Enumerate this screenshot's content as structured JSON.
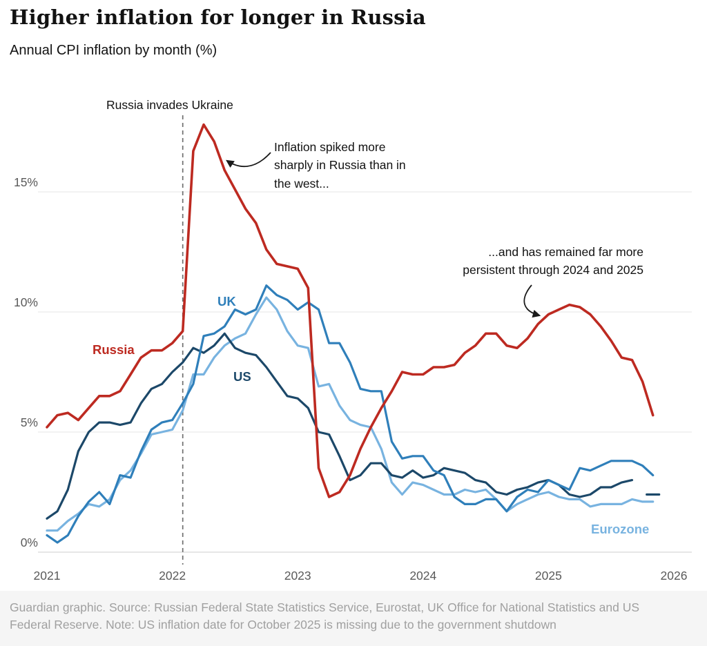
{
  "header": {
    "title": "Higher inflation for longer in Russia",
    "subtitle": "Annual CPI inflation by month (%)"
  },
  "annotations": {
    "spike_note": "Inflation spiked more sharply in Russia than in the west...",
    "persist_note": "...and has remained far more persistent through 2024 and 2025"
  },
  "footer": {
    "caption": "Guardian graphic. Source: Russian Federal State Statistics Service, Eurostat, UK Office for National Statistics and US Federal Reserve. Note: US inflation date for October 2025 is missing due to the government shutdown"
  },
  "chart_data": {
    "type": "line",
    "title": "Higher inflation for longer in Russia",
    "subtitle": "Annual CPI inflation by month (%)",
    "x_start": "2021-01",
    "x_end": "2025-11",
    "x_unit": "month",
    "ylim": [
      0,
      18.5
    ],
    "grid": "horizontal",
    "legend_position": "inline-labels",
    "y_ticks": [
      {
        "label": "0%",
        "value": 0
      },
      {
        "label": "5%",
        "value": 5
      },
      {
        "label": "10%",
        "value": 10
      },
      {
        "label": "15%",
        "value": 15
      }
    ],
    "x_ticks": [
      {
        "label": "2021",
        "month": 0
      },
      {
        "label": "2022",
        "month": 12
      },
      {
        "label": "2023",
        "month": 24
      },
      {
        "label": "2024",
        "month": 36
      },
      {
        "label": "2025",
        "month": 48
      },
      {
        "label": "2026",
        "month": 60
      }
    ],
    "event_line": {
      "month": 13,
      "label": "Russia invades Ukraine"
    },
    "series": [
      {
        "name": "Eurozone",
        "color": "#78b3e0",
        "width": 3.2,
        "values": [
          0.9,
          0.9,
          1.3,
          1.6,
          2.0,
          1.9,
          2.2,
          3.0,
          3.4,
          4.1,
          4.9,
          5.0,
          5.1,
          5.9,
          7.4,
          7.4,
          8.1,
          8.6,
          8.9,
          9.1,
          9.9,
          10.6,
          10.1,
          9.2,
          8.6,
          8.5,
          6.9,
          7.0,
          6.1,
          5.5,
          5.3,
          5.2,
          4.3,
          2.9,
          2.4,
          2.9,
          2.8,
          2.6,
          2.4,
          2.4,
          2.6,
          2.5,
          2.6,
          2.2,
          1.7,
          2.0,
          2.2,
          2.4,
          2.5,
          2.3,
          2.2,
          2.2,
          1.9,
          2.0,
          2.0,
          2.0,
          2.2,
          2.1,
          2.1
        ]
      },
      {
        "name": "US",
        "color": "#1c4869",
        "width": 3.2,
        "values": [
          1.4,
          1.7,
          2.6,
          4.2,
          5.0,
          5.4,
          5.4,
          5.3,
          5.4,
          6.2,
          6.8,
          7.0,
          7.5,
          7.9,
          8.5,
          8.3,
          8.6,
          9.1,
          8.5,
          8.3,
          8.2,
          7.7,
          7.1,
          6.5,
          6.4,
          6.0,
          5.0,
          4.9,
          4.0,
          3.0,
          3.2,
          3.7,
          3.7,
          3.2,
          3.1,
          3.4,
          3.1,
          3.2,
          3.5,
          3.4,
          3.3,
          3.0,
          2.9,
          2.5,
          2.4,
          2.6,
          2.7,
          2.9,
          3.0,
          2.8,
          2.4,
          2.3,
          2.4,
          2.7,
          2.7,
          2.9,
          3.0,
          null,
          2.4
        ]
      },
      {
        "name": "UK",
        "color": "#2f7fba",
        "width": 3.2,
        "values": [
          0.7,
          0.4,
          0.7,
          1.5,
          2.1,
          2.5,
          2.0,
          3.2,
          3.1,
          4.2,
          5.1,
          5.4,
          5.5,
          6.2,
          7.0,
          9.0,
          9.1,
          9.4,
          10.1,
          9.9,
          10.1,
          11.1,
          10.7,
          10.5,
          10.1,
          10.4,
          10.1,
          8.7,
          8.7,
          7.9,
          6.8,
          6.7,
          6.7,
          4.6,
          3.9,
          4.0,
          4.0,
          3.4,
          3.2,
          2.3,
          2.0,
          2.0,
          2.2,
          2.2,
          1.7,
          2.3,
          2.6,
          2.5,
          3.0,
          2.8,
          2.6,
          3.5,
          3.4,
          3.6,
          3.8,
          3.8,
          3.8,
          3.6,
          3.2
        ]
      },
      {
        "name": "Russia",
        "color": "#bd2a21",
        "width": 3.6,
        "values": [
          5.2,
          5.7,
          5.8,
          5.5,
          6.0,
          6.5,
          6.5,
          6.7,
          7.4,
          8.1,
          8.4,
          8.4,
          8.7,
          9.2,
          16.7,
          17.8,
          17.1,
          15.9,
          15.1,
          14.3,
          13.7,
          12.6,
          12.0,
          11.9,
          11.8,
          11.0,
          3.5,
          2.3,
          2.5,
          3.2,
          4.3,
          5.2,
          6.0,
          6.7,
          7.5,
          7.4,
          7.4,
          7.7,
          7.7,
          7.8,
          8.3,
          8.6,
          9.1,
          9.1,
          8.6,
          8.5,
          8.9,
          9.5,
          9.9,
          10.1,
          10.3,
          10.2,
          9.9,
          9.4,
          8.8,
          8.1,
          8.0,
          7.1,
          5.7
        ]
      }
    ]
  }
}
